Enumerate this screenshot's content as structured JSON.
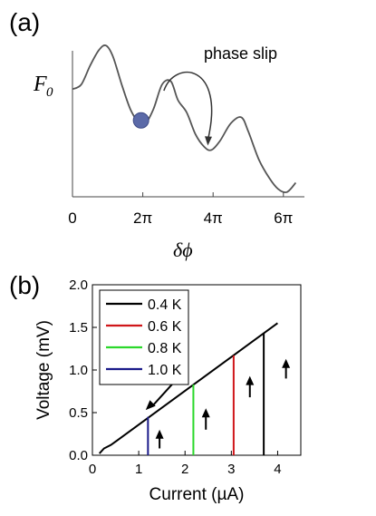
{
  "panel_a": {
    "label": "(a)",
    "annotation": "phase slip",
    "ylabel": "F",
    "ylabel_sub": "0",
    "xlabel": "δϕ",
    "x_ticks": [
      {
        "v": 0,
        "label": "0"
      },
      {
        "v": 2,
        "label": "2π"
      },
      {
        "v": 4,
        "label": "4π"
      },
      {
        "v": 6,
        "label": "6π"
      }
    ]
  },
  "panel_b": {
    "label": "(b)"
  },
  "chart_data": [
    {
      "type": "line",
      "title": "",
      "xlabel": "δϕ",
      "ylabel": "F0",
      "x_unit": "π",
      "xlim": [
        0,
        6.5
      ],
      "ylim": [
        0,
        1
      ],
      "curve": {
        "x": [
          0,
          0.25,
          0.5,
          0.75,
          0.95,
          1.15,
          1.4,
          1.65,
          1.9,
          2.05,
          2.3,
          2.55,
          2.8,
          3.0,
          3.25,
          3.5,
          3.75,
          3.95,
          4.2,
          4.5,
          4.8,
          5.0,
          5.3,
          5.6,
          5.85,
          6.1,
          6.35
        ],
        "y": [
          0.69,
          0.72,
          0.84,
          0.94,
          0.97,
          0.9,
          0.72,
          0.56,
          0.47,
          0.46,
          0.56,
          0.72,
          0.74,
          0.62,
          0.54,
          0.4,
          0.32,
          0.3,
          0.36,
          0.47,
          0.51,
          0.42,
          0.24,
          0.12,
          0.05,
          0.03,
          0.09
        ]
      },
      "ball": {
        "x": 1.95,
        "y": 0.49,
        "color": "#5b6aa8"
      },
      "phase_slip_arrow": {
        "from": {
          "x": 2.6,
          "y": 0.68
        },
        "to": {
          "x": 3.85,
          "y": 0.34
        }
      }
    },
    {
      "type": "line",
      "title": "",
      "xlabel": "Current (µA)",
      "ylabel": "Voltage (mV)",
      "xlim": [
        0,
        4.5
      ],
      "ylim": [
        0,
        2.0
      ],
      "x_ticks": [
        0,
        1,
        2,
        3,
        4
      ],
      "y_ticks": [
        "0.0",
        "0.5",
        "1.0",
        "1.5",
        "2.0"
      ],
      "x_tick_labels": [
        "0",
        "1",
        "2",
        "3",
        "4"
      ],
      "legend_position": "top-left",
      "ohmic_line": {
        "x": [
          0.15,
          0.25,
          0.4,
          4.0
        ],
        "y": [
          0.02,
          0.08,
          0.12,
          1.55
        ],
        "color": "#000000"
      },
      "series": [
        {
          "name": "0.4 K",
          "color": "#000000",
          "jump_current": 3.7,
          "v_top": 1.43
        },
        {
          "name": "0.6 K",
          "color": "#d0161a",
          "jump_current": 3.05,
          "v_top": 1.17
        },
        {
          "name": "0.8 K",
          "color": "#2bd82b",
          "jump_current": 2.18,
          "v_top": 0.83
        },
        {
          "name": "1.0 K",
          "color": "#1a1a8a",
          "jump_current": 1.2,
          "v_top": 0.45
        }
      ],
      "up_arrows": [
        {
          "x": 1.45,
          "y0": 0.08,
          "y1": 0.3
        },
        {
          "x": 2.45,
          "y0": 0.3,
          "y1": 0.55
        },
        {
          "x": 3.4,
          "y0": 0.68,
          "y1": 0.93
        },
        {
          "x": 4.18,
          "y0": 0.9,
          "y1": 1.13
        }
      ],
      "down_arrow": {
        "x0": 1.8,
        "y0": 0.88,
        "x1": 1.15,
        "y1": 0.53
      }
    }
  ]
}
